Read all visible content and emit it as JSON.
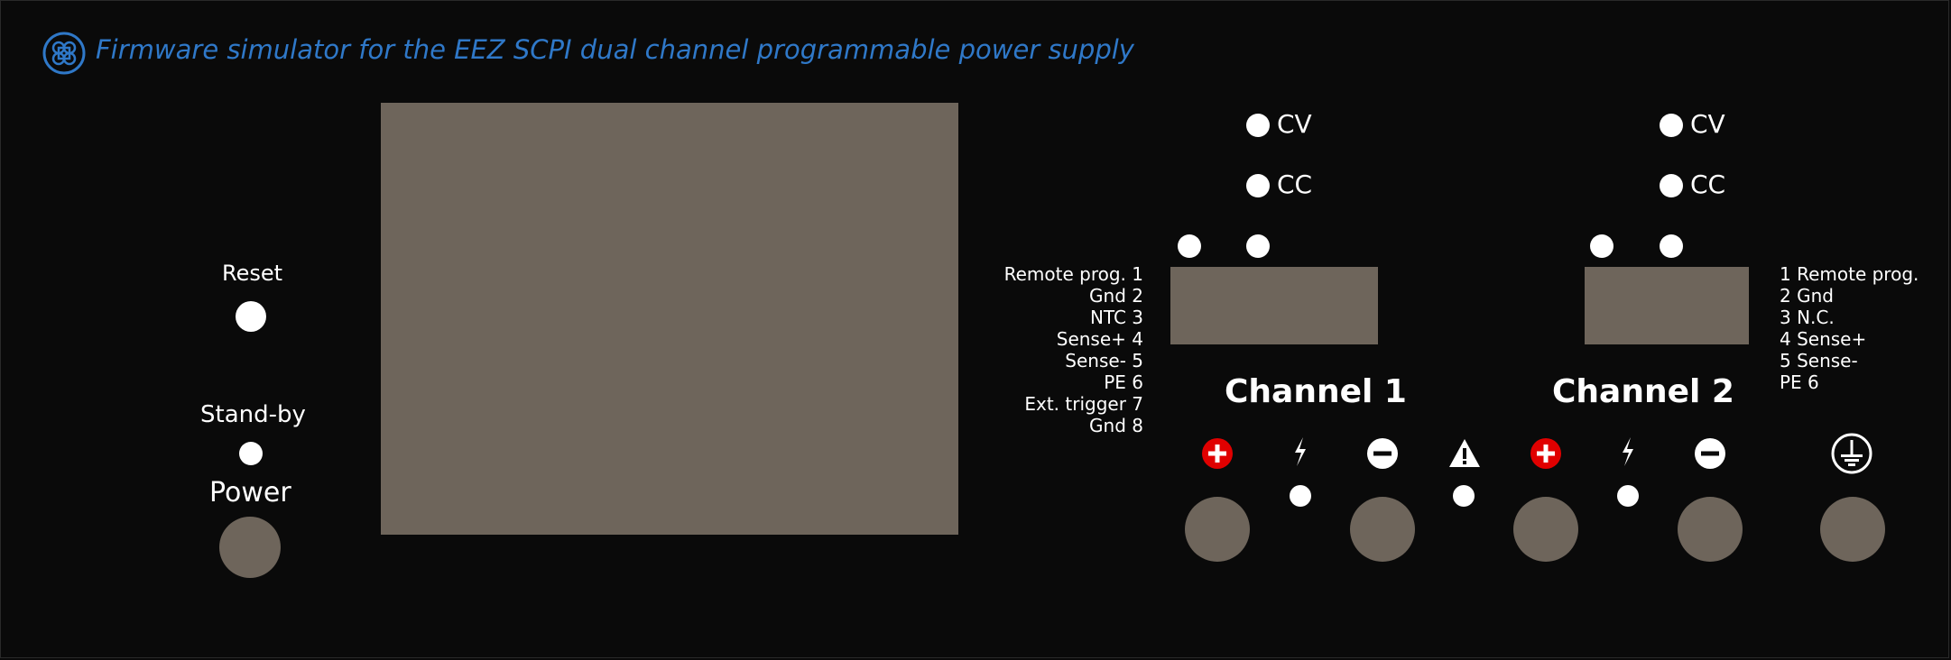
{
  "header": {
    "title": "Firmware simulator for the EEZ SCPI dual channel programmable power supply",
    "logo_icon": "eez-logo-icon"
  },
  "left_controls": {
    "reset_label": "Reset",
    "standby_label": "Stand-by",
    "power_label": "Power"
  },
  "channel1": {
    "title": "Channel 1",
    "cv_label": "CV",
    "cc_label": "CC",
    "pins": [
      "Remote prog. 1",
      "Gnd 2",
      "NTC 3",
      "Sense+ 4",
      "Sense- 5",
      "PE 6",
      "Ext. trigger 7",
      "Gnd 8"
    ]
  },
  "channel2": {
    "title": "Channel 2",
    "cv_label": "CV",
    "cc_label": "CC",
    "pins": [
      "1 Remote prog.",
      "2 Gnd",
      "3 N.C.",
      "4 Sense+",
      "5 Sense-",
      "PE 6"
    ]
  },
  "icons": {
    "plus": "plus-terminal-icon",
    "minus": "minus-terminal-icon",
    "bolt": "lightning-icon",
    "warning": "warning-icon",
    "ground": "ground-icon"
  },
  "colors": {
    "background": "#0a0a0a",
    "display": "#6e655b",
    "title": "#2f78c8",
    "plus_red": "#e00000"
  }
}
